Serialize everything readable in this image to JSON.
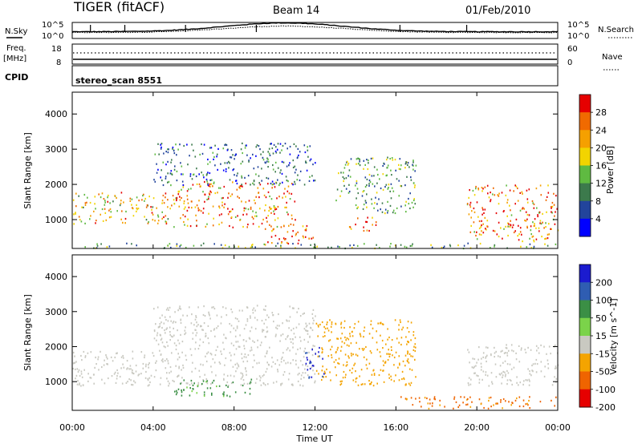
{
  "header": {
    "title": "TIGER (fitACF)",
    "beam": "Beam 14",
    "date": "01/Feb/2010"
  },
  "noise_panel": {
    "left_label": "N.Sky",
    "left_ticks": [
      "10^5",
      "10^0"
    ],
    "right_ticks": [
      "10^5",
      "10^0"
    ],
    "right_label": "N.Search"
  },
  "freq_panel": {
    "left_label_1": "Freq.",
    "left_label_2": "[MHz]",
    "left_ticks": [
      "18",
      "8"
    ],
    "right_ticks": [
      "60",
      "0"
    ],
    "right_label": "Nave"
  },
  "cpid_panel": {
    "label": "CPID",
    "text": "stereo_scan 8551"
  },
  "x_axis": {
    "label": "Time UT",
    "ticks": [
      "00:00",
      "04:00",
      "08:00",
      "12:00",
      "16:00",
      "20:00",
      "00:00"
    ]
  },
  "power_panel": {
    "ylabel": "Slant Range [km]",
    "yticks": [
      "1000",
      "2000",
      "3000",
      "4000"
    ],
    "colorbar_label": "Power [dB]",
    "colorbar_ticks": [
      "4",
      "8",
      "12",
      "16",
      "20",
      "24",
      "28"
    ],
    "colors": [
      "#0000ff",
      "#22449c",
      "#3c7a4c",
      "#5fba41",
      "#f2d400",
      "#f5a000",
      "#f06a00",
      "#e60000"
    ]
  },
  "velocity_panel": {
    "ylabel": "Slant Range [km]",
    "yticks": [
      "1000",
      "2000",
      "3000",
      "4000"
    ],
    "colorbar_label": "Velocity [m s^-1]",
    "colorbar_ticks": [
      "200",
      "100",
      "50",
      "15",
      "-15",
      "-50",
      "-100",
      "-200"
    ],
    "colors": [
      "#1b1bcf",
      "#2f5db2",
      "#3b8f45",
      "#7bd34a",
      "#c9c9c1",
      "#f4a400",
      "#ef6400",
      "#e60000"
    ]
  },
  "chart_data": [
    {
      "type": "heatmap",
      "title": "Power",
      "x_range_hours": [
        0,
        24
      ],
      "ylim": [
        180,
        4620
      ],
      "ylabel": "Slant Range [km]",
      "xlabel": "Time UT",
      "colorbar": {
        "label": "Power [dB]",
        "range": [
          0,
          30
        ]
      },
      "regions": [
        {
          "t0": 0.0,
          "t1": 5.0,
          "r0": 900,
          "r1": 1800,
          "level": 20
        },
        {
          "t0": 5.0,
          "t1": 11.0,
          "r0": 800,
          "r1": 2100,
          "level": 24
        },
        {
          "t0": 9.5,
          "t1": 12.0,
          "r0": 300,
          "r1": 900,
          "level": 28
        },
        {
          "t0": 13.5,
          "t1": 15.0,
          "r0": 700,
          "r1": 1100,
          "level": 28
        },
        {
          "t0": 4.0,
          "t1": 12.0,
          "r0": 2000,
          "r1": 3200,
          "level": 8
        },
        {
          "t0": 13.0,
          "t1": 17.0,
          "r0": 1200,
          "r1": 2800,
          "level": 12
        },
        {
          "t0": 19.5,
          "t1": 24.0,
          "r0": 400,
          "r1": 2000,
          "level": 24
        },
        {
          "t0": 0.0,
          "t1": 24.0,
          "r0": 200,
          "r1": 350,
          "level": 12
        }
      ]
    },
    {
      "type": "heatmap",
      "title": "Velocity",
      "x_range_hours": [
        0,
        24
      ],
      "ylim": [
        180,
        4620
      ],
      "ylabel": "Slant Range [km]",
      "xlabel": "Time UT",
      "colorbar": {
        "label": "Velocity [m s^-1]",
        "range": [
          -250,
          250
        ]
      },
      "regions": [
        {
          "t0": 0.0,
          "t1": 12.0,
          "r0": 900,
          "r1": 1900,
          "level": 0
        },
        {
          "t0": 4.0,
          "t1": 12.0,
          "r0": 1900,
          "r1": 3200,
          "level": 0
        },
        {
          "t0": 12.0,
          "t1": 17.0,
          "r0": 900,
          "r1": 2800,
          "level": -30
        },
        {
          "t0": 5.0,
          "t1": 9.0,
          "r0": 600,
          "r1": 1100,
          "level": 40
        },
        {
          "t0": 11.5,
          "t1": 12.5,
          "r0": 1100,
          "r1": 2000,
          "level": 150
        },
        {
          "t0": 19.5,
          "t1": 24.0,
          "r0": 900,
          "r1": 2100,
          "level": 0
        },
        {
          "t0": 16.0,
          "t1": 24.0,
          "r0": 250,
          "r1": 600,
          "level": -60
        }
      ]
    }
  ]
}
